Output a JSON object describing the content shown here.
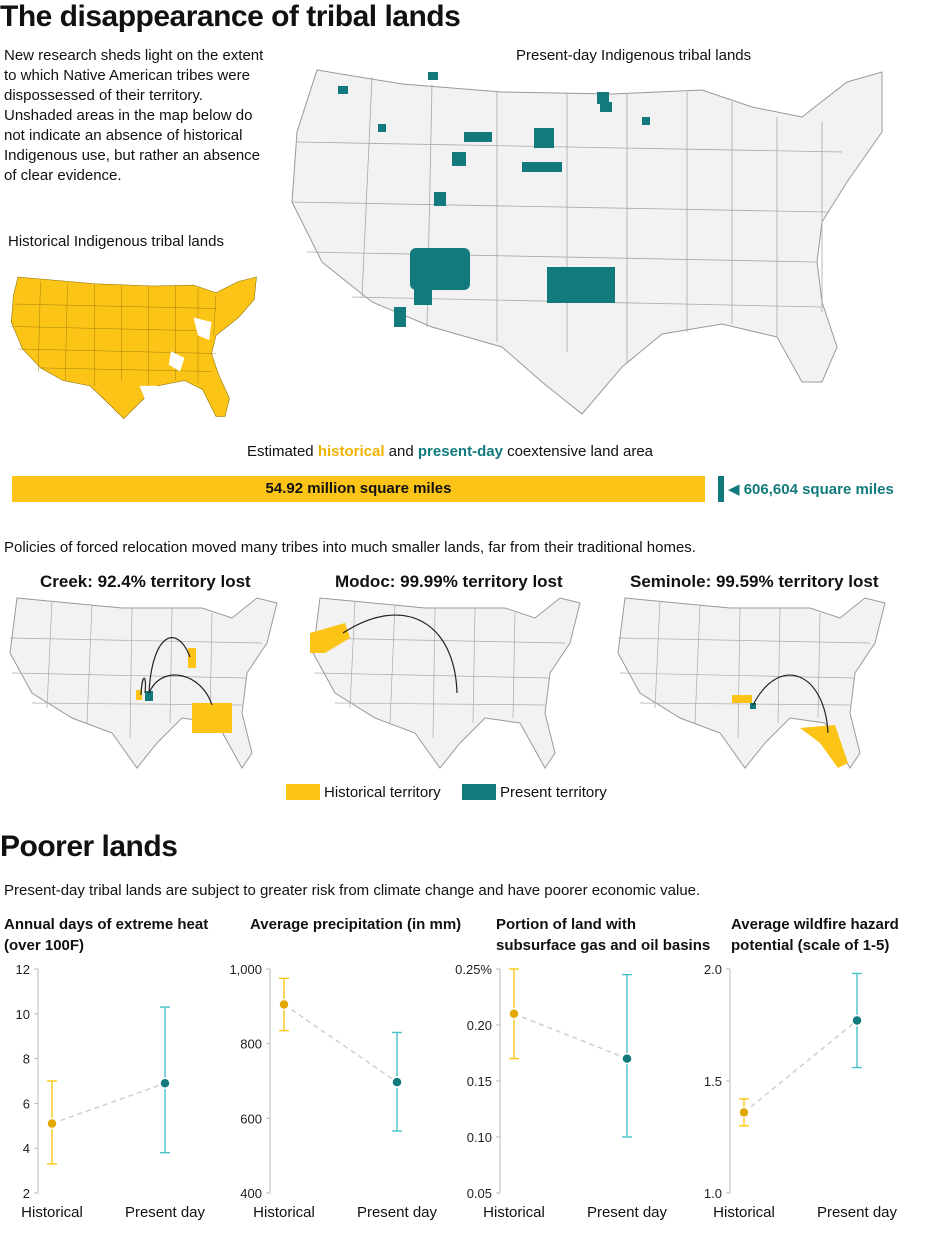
{
  "title": "The disappearance of tribal lands",
  "intro": "New research sheds light on the extent to which Native American tribes were dispossessed of their territory. Unshaded areas in the map below do not indicate an absence of historical Indigenous use, but rather an absence of clear evidence.",
  "maps": {
    "historical_label": "Historical Indigenous tribal lands",
    "present_label": "Present-day Indigenous tribal lands"
  },
  "land_area": {
    "caption_prefix": "Estimated ",
    "caption_hist": "historical",
    "caption_mid": " and ",
    "caption_pres": "present-day",
    "caption_suffix": " coextensive land area",
    "historical_label": "54.92 million square miles",
    "present_label": "606,604 square miles"
  },
  "relocation": {
    "intro": "Policies of forced relocation moved many tribes into much smaller lands, far from their traditional homes.",
    "cases": [
      {
        "title": "Creek: 92.4% territory lost"
      },
      {
        "title": "Modoc: 99.99% territory lost"
      },
      {
        "title": "Seminole: 99.59% territory lost"
      }
    ],
    "legend_historical": "Historical territory",
    "legend_present": "Present territory"
  },
  "colors": {
    "historical": "#fcc417",
    "historical_dark": "#e0a800",
    "present": "#127a7c",
    "present_light": "#49c2c9",
    "state_fill": "#f2f2f2",
    "state_stroke": "#9a9a9a"
  },
  "poorer": {
    "title": "Poorer lands",
    "subtitle": "Present-day tribal lands are subject to greater risk from climate change and have poorer economic value."
  },
  "chart_data": [
    {
      "type": "scatter",
      "title": "Annual days of extreme heat (over 100F)",
      "categories": [
        "Historical",
        "Present day"
      ],
      "values": [
        5.1,
        6.9
      ],
      "error_low": [
        3.3,
        3.8
      ],
      "error_high": [
        7.0,
        10.3
      ],
      "ylim": [
        2,
        12
      ],
      "yticks": [
        2,
        4,
        6,
        8,
        10,
        12
      ],
      "ytick_labels": [
        "2",
        "4",
        "6",
        "8",
        "10",
        "12"
      ]
    },
    {
      "type": "scatter",
      "title": "Average precipitation (in mm)",
      "categories": [
        "Historical",
        "Present day"
      ],
      "values": [
        905,
        697
      ],
      "error_low": [
        835,
        566
      ],
      "error_high": [
        975,
        830
      ],
      "ylim": [
        400,
        1000
      ],
      "yticks": [
        400,
        600,
        800,
        1000
      ],
      "ytick_labels": [
        "400",
        "600",
        "800",
        "1,000"
      ]
    },
    {
      "type": "scatter",
      "title": "Portion of land with subsurface gas and oil basins",
      "categories": [
        "Historical",
        "Present day"
      ],
      "values": [
        0.21,
        0.17
      ],
      "error_low": [
        0.17,
        0.1
      ],
      "error_high": [
        0.25,
        0.245
      ],
      "ylim": [
        0.05,
        0.25
      ],
      "yticks": [
        0.05,
        0.1,
        0.15,
        0.2,
        0.25
      ],
      "ytick_labels": [
        "0.05",
        "0.10",
        "0.15",
        "0.20",
        "0.25%"
      ]
    },
    {
      "type": "scatter",
      "title": "Average wildfire hazard potential (scale of 1-5)",
      "categories": [
        "Historical",
        "Present day"
      ],
      "values": [
        1.36,
        1.77
      ],
      "error_low": [
        1.3,
        1.56
      ],
      "error_high": [
        1.42,
        1.98
      ],
      "ylim": [
        1.0,
        2.0
      ],
      "yticks": [
        1.0,
        1.5,
        2.0
      ],
      "ytick_labels": [
        "1.0",
        "1.5",
        "2.0"
      ]
    }
  ]
}
